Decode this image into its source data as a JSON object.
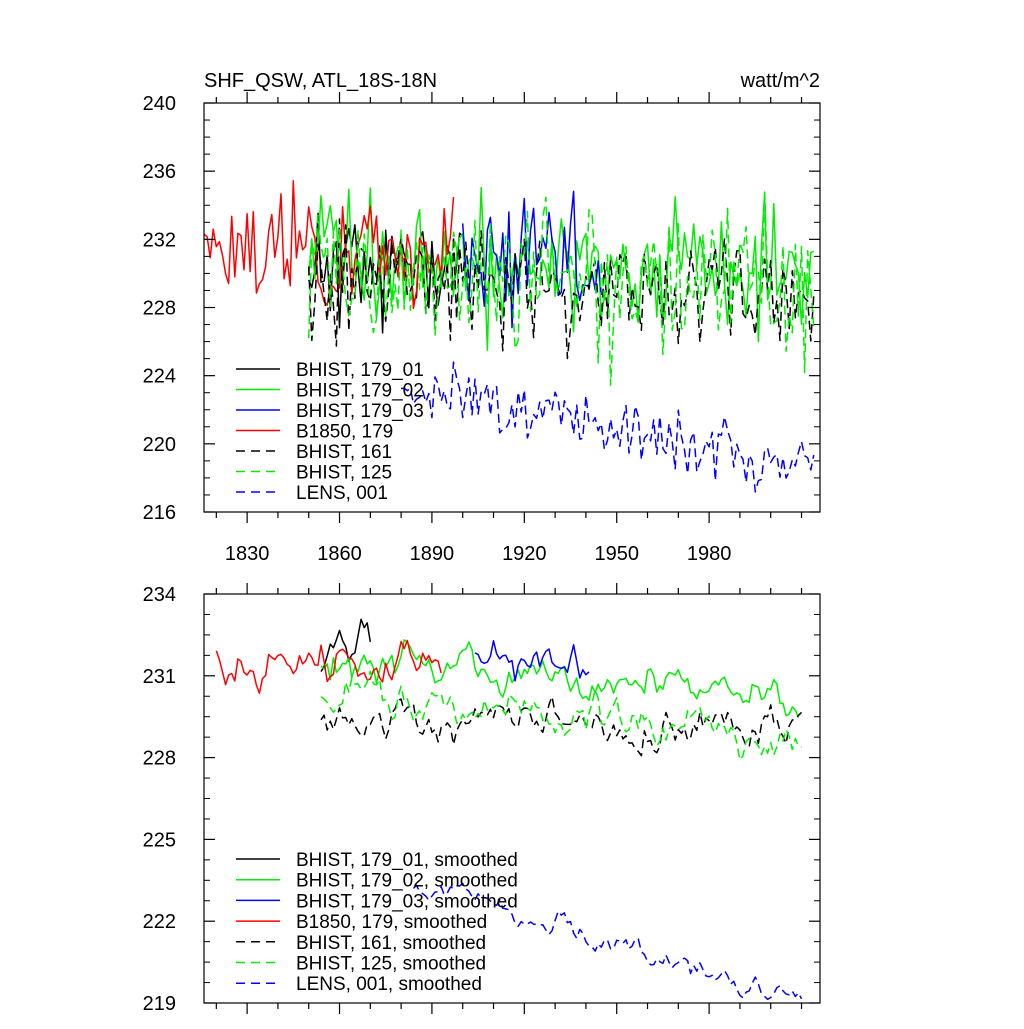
{
  "chart_data": [
    {
      "type": "line",
      "title": "SHF_QSW, ATL_18S-18N",
      "units": "watt/m^2",
      "xlim": [
        1816,
        2016
      ],
      "ylim": [
        216,
        240
      ],
      "x_ticks": [
        1830,
        1860,
        1890,
        1920,
        1950,
        1980
      ],
      "x_tick_labels": [
        "1830",
        "1860",
        "1890",
        "1920",
        "1950",
        "1980"
      ],
      "y_ticks": [
        216,
        220,
        224,
        228,
        232,
        236,
        240
      ],
      "y_tick_labels": [
        "216",
        "220",
        "224",
        "228",
        "232",
        "236",
        "240"
      ],
      "legend_position": "bottom-left",
      "series": [
        {
          "name": "BHIST, 179_01",
          "color": "#000000",
          "dash": "solid",
          "start": 1850,
          "end": 1900,
          "mean": 230.3,
          "amp": 2.2,
          "trend": 0,
          "smooth": false,
          "seed": 11
        },
        {
          "name": "BHIST, 179_02",
          "color": "#00ee00",
          "dash": "solid",
          "start": 1850,
          "end": 2014,
          "mean": 231.2,
          "amp": 2.4,
          "trend": -0.009,
          "smooth": false,
          "seed": 12
        },
        {
          "name": "BHIST, 179_03",
          "color": "#0000ff",
          "dash": "solid",
          "start": 1900,
          "end": 1945,
          "mean": 231.1,
          "amp": 2.3,
          "trend": 0,
          "smooth": false,
          "seed": 13
        },
        {
          "name": "B1850, 179",
          "color": "#ff0000",
          "dash": "solid",
          "start": 1816,
          "end": 1897,
          "mean": 231.2,
          "amp": 2.0,
          "trend": 0,
          "smooth": false,
          "seed": 14
        },
        {
          "name": "BHIST, 161",
          "color": "#000000",
          "dash": "dashed",
          "start": 1850,
          "end": 2014,
          "mean": 229.8,
          "amp": 2.0,
          "trend": -0.006,
          "smooth": false,
          "seed": 15
        },
        {
          "name": "BHIST, 125",
          "color": "#00ee00",
          "dash": "dashed",
          "start": 1850,
          "end": 2014,
          "mean": 230.2,
          "amp": 2.6,
          "trend": -0.008,
          "smooth": false,
          "seed": 16
        },
        {
          "name": "LENS, 001",
          "color": "#0000ff",
          "dash": "dashed",
          "start": 1880,
          "end": 2014,
          "mean": 224.5,
          "amp": 1.1,
          "trend": -0.035,
          "smooth": false,
          "seed": 17
        }
      ]
    },
    {
      "type": "line",
      "title": "",
      "units": "",
      "xlim": [
        1816,
        2016
      ],
      "ylim": [
        219,
        234
      ],
      "x_ticks": [
        1830,
        1860,
        1890,
        1920,
        1950,
        1980
      ],
      "x_tick_labels": [],
      "y_ticks": [
        219,
        222,
        225,
        228,
        231,
        234
      ],
      "y_tick_labels": [
        "219",
        "222",
        "225",
        "228",
        "231",
        "234"
      ],
      "legend_position": "bottom-left",
      "series": [
        {
          "name": "BHIST, 179_01, smoothed",
          "color": "#000000",
          "dash": "solid",
          "start": 1854,
          "end": 1870,
          "mean": 231.5,
          "amp": 0.8,
          "trend": 0.03,
          "smooth": true,
          "seed": 21
        },
        {
          "name": "BHIST, 179_02, smoothed",
          "color": "#00ee00",
          "dash": "solid",
          "start": 1854,
          "end": 2009,
          "mean": 231.9,
          "amp": 0.7,
          "trend": -0.012,
          "smooth": true,
          "seed": 22
        },
        {
          "name": "BHIST, 179_03, smoothed",
          "color": "#0000ff",
          "dash": "solid",
          "start": 1904,
          "end": 1941,
          "mean": 231.3,
          "amp": 0.7,
          "trend": 0,
          "smooth": true,
          "seed": 23
        },
        {
          "name": "B1850, 179, smoothed",
          "color": "#ff0000",
          "dash": "solid",
          "start": 1820,
          "end": 1893,
          "mean": 231.4,
          "amp": 0.8,
          "trend": 0,
          "smooth": true,
          "seed": 24
        },
        {
          "name": "BHIST, 161, smoothed",
          "color": "#000000",
          "dash": "dashed",
          "start": 1854,
          "end": 2010,
          "mean": 229.6,
          "amp": 0.7,
          "trend": -0.005,
          "smooth": true,
          "seed": 25
        },
        {
          "name": "BHIST, 125, smoothed",
          "color": "#00ee00",
          "dash": "dashed",
          "start": 1854,
          "end": 2010,
          "mean": 230.6,
          "amp": 0.8,
          "trend": -0.012,
          "smooth": true,
          "seed": 26
        },
        {
          "name": "LENS, 001, smoothed",
          "color": "#0000ff",
          "dash": "dashed",
          "start": 1884,
          "end": 2010,
          "mean": 224.6,
          "amp": 0.4,
          "trend": -0.035,
          "smooth": true,
          "seed": 27
        }
      ]
    }
  ]
}
